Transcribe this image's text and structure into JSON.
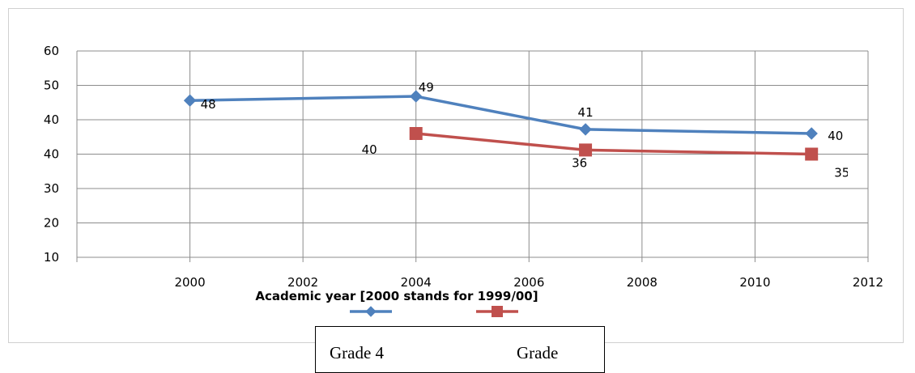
{
  "chart_data": {
    "type": "line",
    "xlabel": "Academic year [2000 stands for 1999/00]",
    "ylabel": "",
    "xlim": [
      1998,
      2012
    ],
    "ylim": [
      10,
      60
    ],
    "x_ticks": [
      "2000",
      "2002",
      "2004",
      "2006",
      "2008",
      "2010",
      "2012"
    ],
    "y_ticks": [
      "10",
      "20",
      "30",
      "40",
      "40",
      "50",
      "60"
    ],
    "series": [
      {
        "name": "Grade 4",
        "color": "#4f81bd",
        "marker": "diamond",
        "points": [
          [
            2000,
            48
          ],
          [
            2004,
            49
          ],
          [
            2007,
            41
          ],
          [
            2011,
            40
          ]
        ],
        "labels": [
          "48",
          "49",
          "41",
          "40"
        ]
      },
      {
        "name": "Grade",
        "color": "#c0504d",
        "marker": "square",
        "points": [
          [
            2004,
            40
          ],
          [
            2007,
            36
          ],
          [
            2011,
            35
          ]
        ],
        "labels": [
          "40",
          "36",
          "35"
        ]
      }
    ],
    "legend": [
      "Grade 4",
      "Grade"
    ]
  }
}
